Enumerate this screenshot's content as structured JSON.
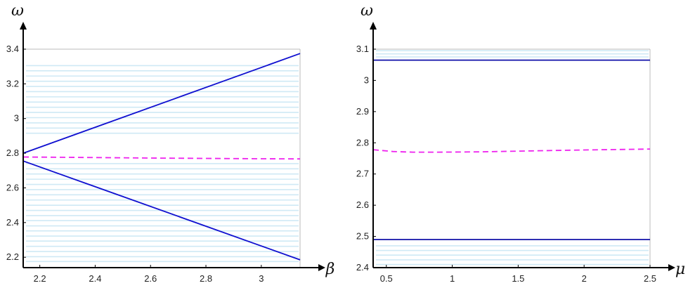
{
  "chart_data": [
    {
      "type": "line",
      "xlabel": "β",
      "ylabel": "ω",
      "xlim": [
        2.14,
        3.14
      ],
      "ylim": [
        2.14,
        3.4
      ],
      "xticks": [
        2.2,
        2.4,
        2.6,
        2.8,
        3
      ],
      "xtick_labels": [
        "2.2",
        "2.4",
        "2.6",
        "2.8",
        "3"
      ],
      "yticks": [
        2.2,
        2.4,
        2.6,
        2.8,
        3,
        3.2,
        3.4
      ],
      "ytick_labels": [
        "2.2",
        "2.4",
        "2.6",
        "2.8",
        "3",
        "3.2",
        "3.4"
      ],
      "grid": false,
      "axes_style": "origin-arrows",
      "colors": {
        "solid": "#1010d0",
        "dashed": "#ee22ee",
        "band": "#cfe9f5"
      },
      "band_lines_y": [
        2.175,
        2.203,
        2.233,
        2.263,
        2.293,
        2.322,
        2.352,
        2.381,
        2.411,
        2.44,
        2.47,
        2.5,
        2.53,
        2.56,
        2.59,
        2.62,
        2.65,
        2.68,
        2.71,
        2.74,
        2.915,
        2.945,
        2.975,
        3.005,
        3.035,
        3.065,
        3.095,
        3.125,
        3.155,
        3.185,
        3.215,
        3.245,
        3.275,
        3.305
      ],
      "series": [
        {
          "style": "solid",
          "x": [
            2.14,
            3.14
          ],
          "y": [
            2.8,
            3.375
          ]
        },
        {
          "style": "solid",
          "x": [
            2.14,
            3.14
          ],
          "y": [
            2.755,
            2.185
          ]
        },
        {
          "style": "dashed",
          "x": [
            2.14,
            2.4,
            2.6,
            2.8,
            3.0,
            3.14
          ],
          "y": [
            2.778,
            2.775,
            2.772,
            2.77,
            2.768,
            2.767
          ]
        }
      ]
    },
    {
      "type": "line",
      "xlabel": "μ",
      "ylabel": "ω",
      "xlim": [
        0.4,
        2.5
      ],
      "ylim": [
        2.4,
        3.1
      ],
      "xticks": [
        0.5,
        1,
        1.5,
        2,
        2.5
      ],
      "xtick_labels": [
        "0.5",
        "1",
        "1.5",
        "2",
        "2.5"
      ],
      "yticks": [
        2.4,
        2.5,
        2.6,
        2.7,
        2.8,
        2.9,
        3,
        3.1
      ],
      "ytick_labels": [
        "2.4",
        "2.5",
        "2.6",
        "2.7",
        "2.8",
        "2.9",
        "3",
        "3.1"
      ],
      "grid": false,
      "axes_style": "origin-arrows",
      "colors": {
        "solid": "#1010a8",
        "dashed": "#ee22ee",
        "band": "#cfe9f5"
      },
      "band_lines_y": [
        2.41,
        2.425,
        2.44,
        2.455,
        2.47,
        3.075,
        3.085,
        3.095
      ],
      "series": [
        {
          "style": "solid",
          "x": [
            0.4,
            2.5
          ],
          "y": [
            3.065,
            3.065
          ]
        },
        {
          "style": "solid",
          "x": [
            0.4,
            2.5
          ],
          "y": [
            2.49,
            2.49
          ]
        },
        {
          "style": "dashed",
          "x": [
            0.4,
            0.55,
            0.7,
            0.9,
            1.2,
            1.6,
            2.0,
            2.5
          ],
          "y": [
            2.778,
            2.772,
            2.77,
            2.77,
            2.771,
            2.774,
            2.777,
            2.78
          ]
        }
      ]
    }
  ]
}
